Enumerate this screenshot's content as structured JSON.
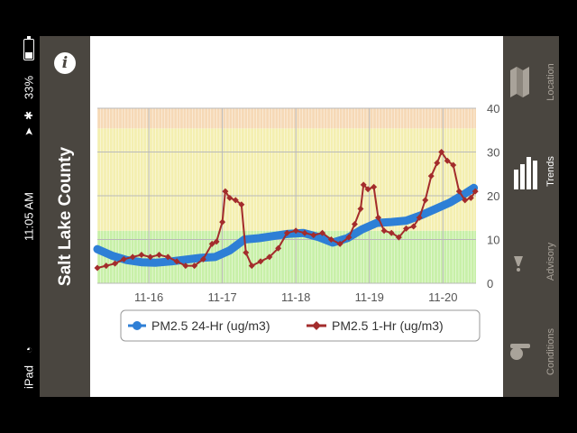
{
  "status_bar": {
    "battery_percent": "33%",
    "battery_level": 0.33,
    "time": "11:05 AM",
    "device": "iPad"
  },
  "header": {
    "county": "Salt Lake County",
    "info_icon_char": "i"
  },
  "nav": {
    "location": "Location",
    "trends": "Trends",
    "advisory": "Advisory",
    "conditions": "Conditions"
  },
  "colors": {
    "series_24hr": "#2e7fd6",
    "series_1hr": "#a32c2c",
    "band_good": "#c8f0a8",
    "band_moderate": "#f4efb0",
    "band_usg": "#f6d9b6",
    "panel": "#4a4640"
  },
  "chart_data": {
    "type": "line",
    "xlabel": "",
    "ylabel": "",
    "ylim": [
      0,
      40
    ],
    "yticks": [
      0,
      10,
      20,
      30,
      40
    ],
    "xticks": [
      {
        "label": "11-16",
        "x": 1.0
      },
      {
        "label": "11-17",
        "x": 2.0
      },
      {
        "label": "11-18",
        "x": 3.0
      },
      {
        "label": "11-19",
        "x": 4.0
      },
      {
        "label": "11-20",
        "x": 5.0
      }
    ],
    "xlim": [
      0.3,
      5.45
    ],
    "grid": true,
    "legend_position": "bottom",
    "bands": [
      {
        "from": 0,
        "to": 12
      },
      {
        "from": 12,
        "to": 35.4
      },
      {
        "from": 35.4,
        "to": 40
      }
    ],
    "series": [
      {
        "name": "PM2.5 24-Hr (ug/m3)",
        "style": "thick",
        "x": [
          0.3,
          0.5,
          0.7,
          0.9,
          1.1,
          1.3,
          1.5,
          1.7,
          1.9,
          2.1,
          2.3,
          2.5,
          2.7,
          2.9,
          3.1,
          3.3,
          3.5,
          3.7,
          3.9,
          4.1,
          4.3,
          4.5,
          4.7,
          4.9,
          5.1,
          5.3,
          5.42
        ],
        "y": [
          7.8,
          6.3,
          5.3,
          4.8,
          4.7,
          5.0,
          5.4,
          5.8,
          6.0,
          7.5,
          10.0,
          10.3,
          10.8,
          11.3,
          11.5,
          10.6,
          9.3,
          10.3,
          12.3,
          13.8,
          14.0,
          14.3,
          15.5,
          17.0,
          18.5,
          20.5,
          21.8
        ]
      },
      {
        "name": "PM2.5 1-Hr (ug/m3)",
        "style": "markers",
        "x": [
          0.3,
          0.42,
          0.54,
          0.66,
          0.78,
          0.9,
          1.02,
          1.14,
          1.26,
          1.38,
          1.5,
          1.62,
          1.74,
          1.86,
          1.92,
          2.0,
          2.04,
          2.1,
          2.18,
          2.26,
          2.32,
          2.4,
          2.52,
          2.64,
          2.76,
          2.88,
          3.0,
          3.12,
          3.24,
          3.36,
          3.48,
          3.6,
          3.72,
          3.8,
          3.88,
          3.92,
          3.98,
          4.06,
          4.12,
          4.2,
          4.3,
          4.4,
          4.5,
          4.6,
          4.68,
          4.76,
          4.84,
          4.92,
          4.98,
          5.06,
          5.14,
          5.22,
          5.3,
          5.38,
          5.44
        ],
        "y": [
          3.5,
          4.0,
          4.5,
          5.5,
          6.0,
          6.5,
          6.0,
          6.5,
          6.0,
          5.0,
          4.0,
          4.0,
          5.5,
          9.0,
          9.5,
          14.0,
          21.0,
          19.5,
          19.0,
          18.0,
          7.0,
          4.0,
          5.0,
          6.0,
          8.0,
          11.5,
          12.0,
          11.5,
          11.0,
          11.5,
          10.0,
          9.0,
          10.5,
          13.5,
          17.0,
          22.5,
          21.5,
          22.0,
          15.0,
          12.0,
          11.5,
          10.5,
          12.5,
          13.0,
          15.0,
          19.0,
          24.5,
          27.5,
          30.0,
          28.0,
          27.0,
          21.0,
          19.0,
          19.5,
          21.0
        ]
      }
    ]
  }
}
